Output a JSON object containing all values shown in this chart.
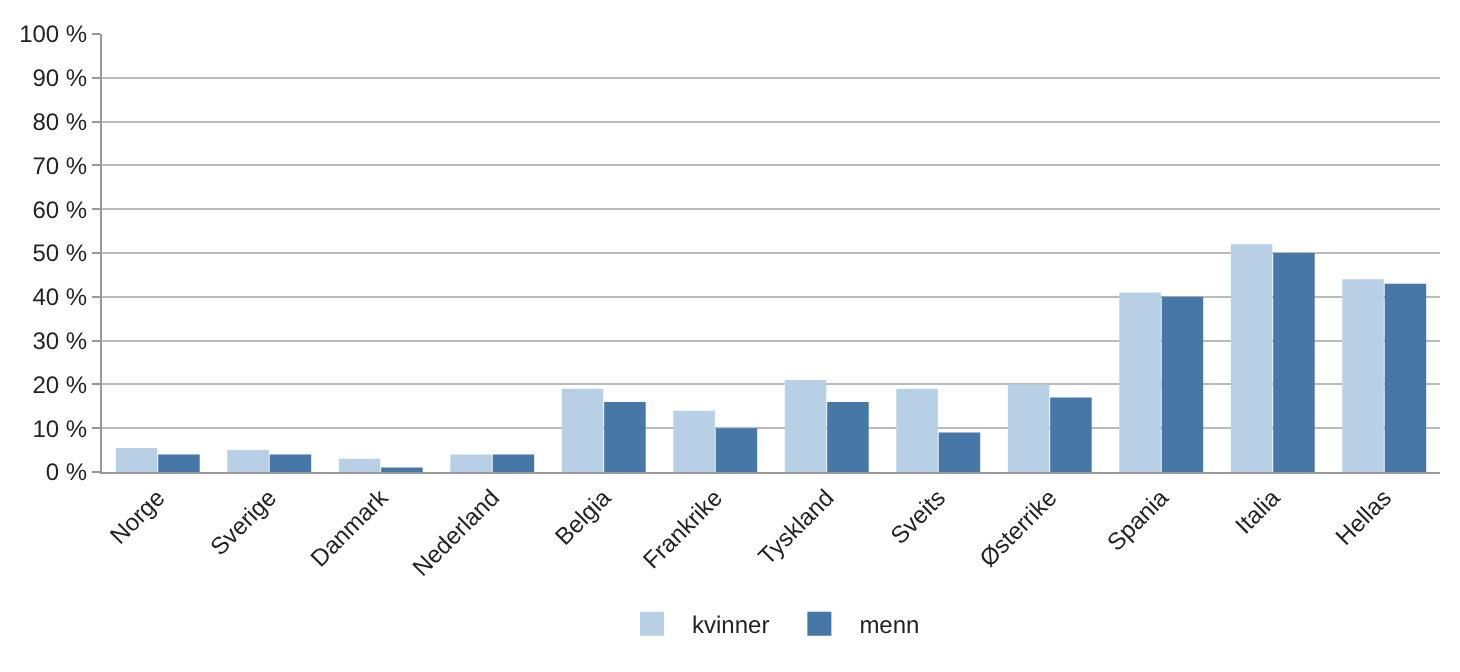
{
  "chart_data": {
    "type": "bar",
    "categories": [
      "Norge",
      "Sverige",
      "Danmark",
      "Nederland",
      "Belgia",
      "Frankrike",
      "Tyskland",
      "Sveits",
      "Østerrike",
      "Spania",
      "Italia",
      "Hellas"
    ],
    "series": [
      {
        "name": "kvinner",
        "color": "#b8d0e6",
        "values": [
          5.5,
          5,
          3,
          4,
          19,
          14,
          21,
          19,
          20,
          41,
          52,
          44
        ]
      },
      {
        "name": "menn",
        "color": "#4677a6",
        "values": [
          4,
          4,
          1,
          4,
          16,
          10,
          16,
          9,
          17,
          40,
          50,
          43
        ]
      }
    ],
    "ylim": [
      0,
      100
    ],
    "yticks": [
      {
        "value": 0,
        "label": "0 %"
      },
      {
        "value": 10,
        "label": "10 %"
      },
      {
        "value": 20,
        "label": "20 %"
      },
      {
        "value": 30,
        "label": "30 %"
      },
      {
        "value": 40,
        "label": "40 %"
      },
      {
        "value": 50,
        "label": "50 %"
      },
      {
        "value": 60,
        "label": "60 %"
      },
      {
        "value": 70,
        "label": "70 %"
      },
      {
        "value": 80,
        "label": "80 %"
      },
      {
        "value": 90,
        "label": "90 %"
      },
      {
        "value": 100,
        "label": "100 %"
      }
    ],
    "grid": "y",
    "legend": "bottom"
  }
}
